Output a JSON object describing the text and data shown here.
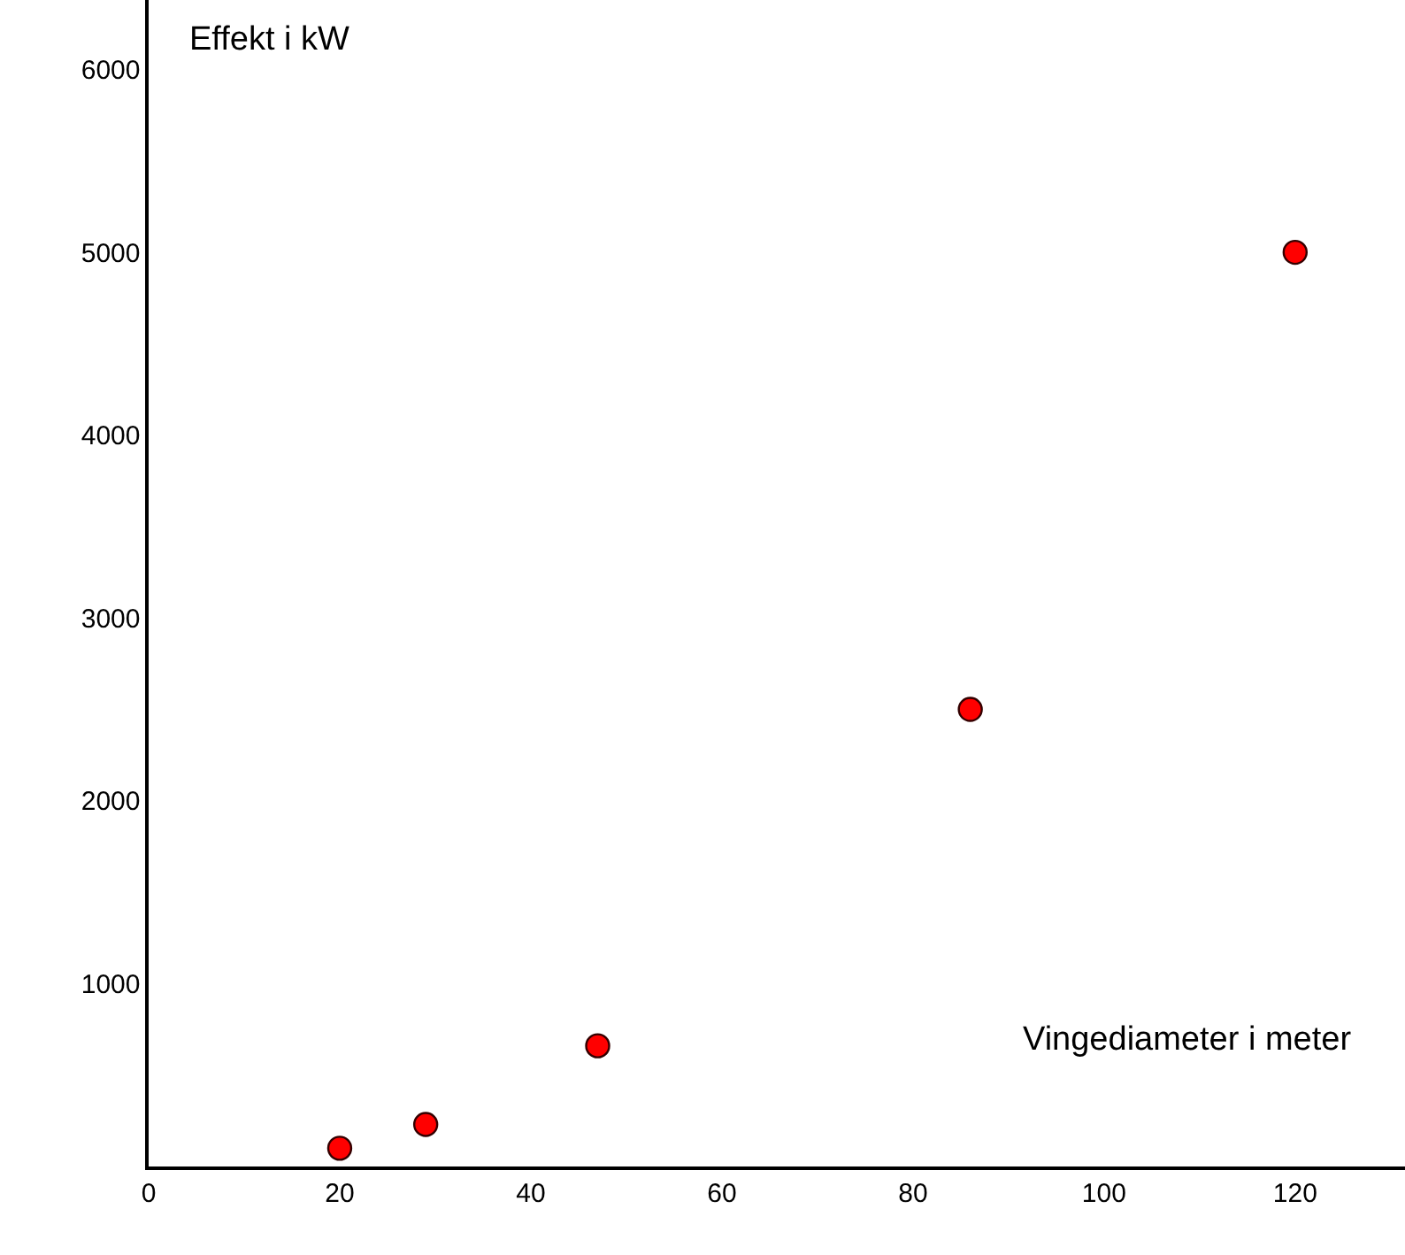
{
  "chart_data": {
    "type": "scatter",
    "xlabel": "Vingediameter i meter",
    "ylabel": "Effekt i kW",
    "x": [
      20,
      29,
      47,
      86,
      120
    ],
    "series": [
      {
        "color": "#ff0000",
        "values": [
          100,
          230,
          660,
          2500,
          5000
        ]
      }
    ],
    "marker": "circle",
    "legend": false,
    "xlim": [
      0,
      131.5
    ],
    "ylim": [
      0,
      6380
    ],
    "xticks": [
      0,
      20,
      40,
      60,
      80,
      100,
      120
    ],
    "yticks": [
      1000,
      2000,
      3000,
      4000,
      5000,
      6000
    ]
  }
}
